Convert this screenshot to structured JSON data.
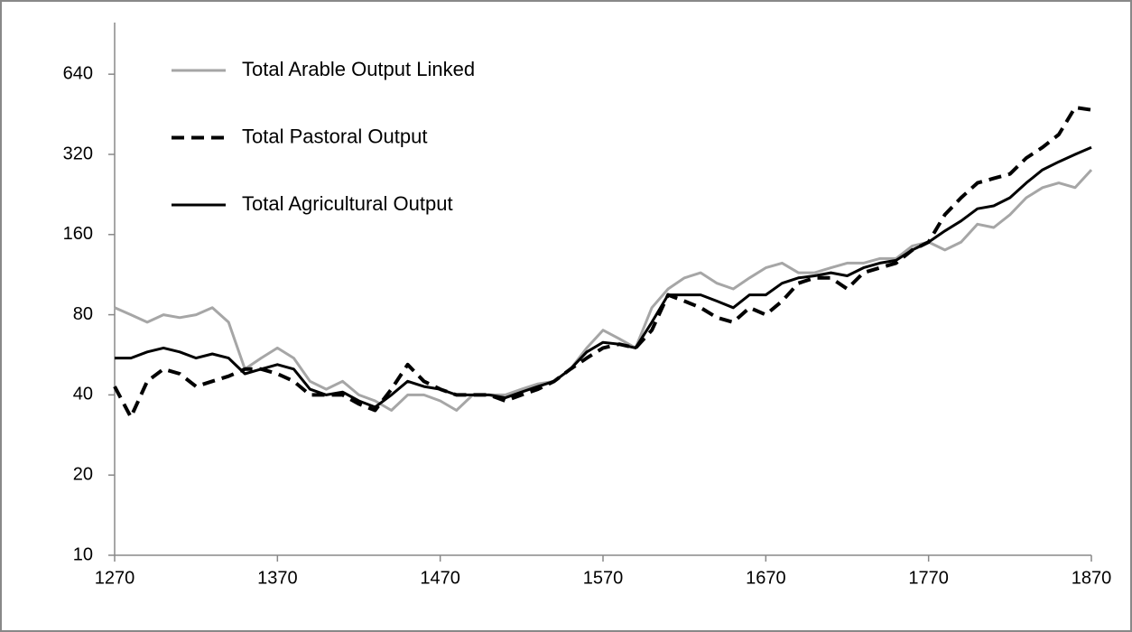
{
  "chart_data": {
    "type": "line",
    "x": [
      1270,
      1280,
      1290,
      1300,
      1310,
      1320,
      1330,
      1340,
      1350,
      1360,
      1370,
      1380,
      1390,
      1400,
      1410,
      1420,
      1430,
      1440,
      1450,
      1460,
      1470,
      1480,
      1490,
      1500,
      1510,
      1520,
      1530,
      1540,
      1550,
      1560,
      1570,
      1580,
      1590,
      1600,
      1610,
      1620,
      1630,
      1640,
      1650,
      1660,
      1670,
      1680,
      1690,
      1700,
      1710,
      1720,
      1730,
      1740,
      1750,
      1760,
      1770,
      1780,
      1790,
      1800,
      1810,
      1820,
      1830,
      1840,
      1850,
      1860,
      1870
    ],
    "series": [
      {
        "name": "Total Arable Output Linked",
        "color": "#a6a6a6",
        "line_style": "solid",
        "values": [
          85,
          80,
          75,
          80,
          78,
          80,
          85,
          75,
          50,
          55,
          60,
          55,
          45,
          42,
          45,
          40,
          38,
          35,
          40,
          40,
          38,
          35,
          40,
          40,
          40,
          42,
          44,
          45,
          50,
          60,
          70,
          65,
          60,
          85,
          100,
          110,
          115,
          105,
          100,
          110,
          120,
          125,
          115,
          115,
          120,
          125,
          125,
          130,
          130,
          145,
          150,
          140,
          150,
          175,
          170,
          190,
          220,
          240,
          250,
          240,
          280
        ]
      },
      {
        "name": "Total Pastoral Output",
        "color": "#000000",
        "line_style": "dashed",
        "values": [
          43,
          33,
          45,
          50,
          48,
          43,
          45,
          47,
          50,
          50,
          48,
          45,
          40,
          40,
          40,
          37,
          35,
          42,
          52,
          45,
          42,
          40,
          40,
          40,
          38,
          40,
          42,
          45,
          50,
          55,
          60,
          62,
          60,
          70,
          95,
          90,
          85,
          78,
          75,
          85,
          80,
          90,
          105,
          110,
          110,
          100,
          115,
          120,
          125,
          140,
          150,
          190,
          220,
          250,
          260,
          270,
          310,
          340,
          380,
          480,
          470
        ]
      },
      {
        "name": "Total Agricultural Output",
        "color": "#000000",
        "line_style": "solid",
        "values": [
          55,
          55,
          58,
          60,
          58,
          55,
          57,
          55,
          48,
          50,
          52,
          50,
          42,
          40,
          41,
          38,
          36,
          40,
          45,
          43,
          42,
          40,
          40,
          40,
          39,
          41,
          43,
          45,
          50,
          58,
          63,
          62,
          60,
          75,
          95,
          95,
          95,
          90,
          85,
          95,
          95,
          105,
          110,
          112,
          115,
          112,
          120,
          125,
          128,
          140,
          150,
          165,
          180,
          200,
          205,
          220,
          250,
          280,
          300,
          320,
          340
        ]
      }
    ],
    "xlim": [
      1270,
      1870
    ],
    "xticks": [
      1270,
      1370,
      1470,
      1570,
      1670,
      1770,
      1870
    ],
    "ylim": [
      10,
      1000
    ],
    "yticks": [
      10,
      20,
      40,
      80,
      160,
      320,
      640
    ],
    "log_scale": true,
    "grid": false,
    "legend": "upper-left"
  }
}
